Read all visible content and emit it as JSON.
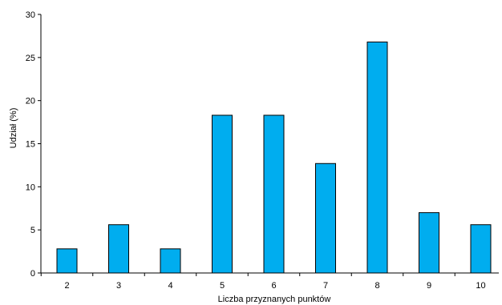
{
  "chart_data": {
    "type": "bar",
    "title": "",
    "xlabel": "Liczba  przyznanych punktów",
    "ylabel": "Udział (%)",
    "categories": [
      "2",
      "3",
      "4",
      "5",
      "6",
      "7",
      "8",
      "9",
      "10"
    ],
    "values": [
      2.8,
      5.6,
      2.8,
      18.3,
      18.3,
      12.7,
      26.8,
      7.0,
      5.6
    ],
    "ylim": [
      0,
      30
    ],
    "yticks": [
      "0",
      "5",
      "10",
      "15",
      "20",
      "25",
      "30"
    ],
    "grid": false,
    "legend": "none",
    "bar_color": "#00adef",
    "bar_stroke": "#000000"
  }
}
